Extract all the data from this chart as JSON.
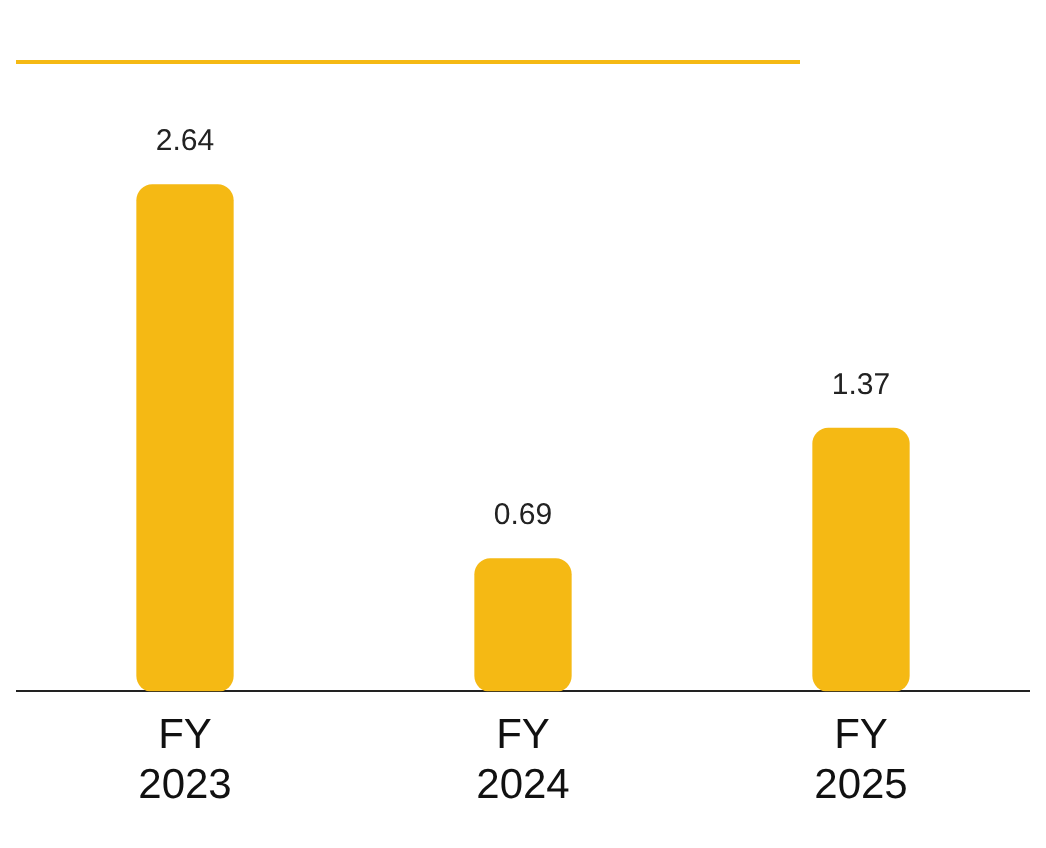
{
  "chart_data": {
    "type": "bar",
    "categories": [
      "FY 2023",
      "FY 2024",
      "FY 2025"
    ],
    "values": [
      2.64,
      0.69,
      1.37
    ],
    "color": "#f5b914",
    "data_labels": true,
    "grid": false,
    "legend": false,
    "tick_labels": "x"
  }
}
